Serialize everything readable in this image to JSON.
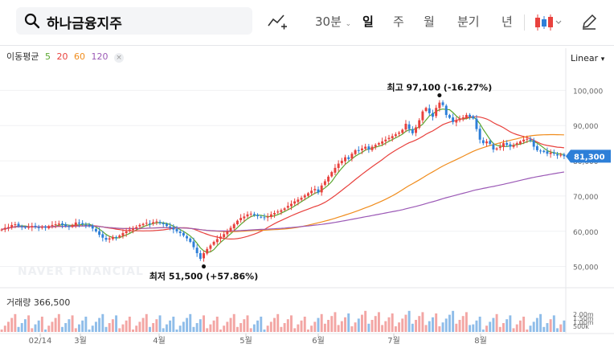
{
  "toolbar": {
    "stock_name": "하나금융지주",
    "interval": "30분",
    "periods": [
      "일",
      "주",
      "월",
      "분기",
      "년"
    ],
    "active_period": "일"
  },
  "legend": {
    "title": "이동평균",
    "items": [
      {
        "label": "5",
        "color": "#5aa62f"
      },
      {
        "label": "20",
        "color": "#e8413d"
      },
      {
        "label": "60",
        "color": "#f08c1c"
      },
      {
        "label": "120",
        "color": "#9b59b6"
      }
    ]
  },
  "scale_mode": "Linear",
  "volume_label": "거래량 366,500",
  "chart_data": {
    "type": "candlestick",
    "ylim": [
      44000,
      106000
    ],
    "yticks": [
      50000,
      60000,
      70000,
      80000,
      90000,
      100000
    ],
    "ytick_labels": [
      "50,000",
      "60,000",
      "70,000",
      "80,000",
      "90,000",
      "100,000"
    ],
    "x_labels": [
      "02/14",
      "3월",
      "4월",
      "5월",
      "6월",
      "7월",
      "8월"
    ],
    "close_series": [
      60500,
      61000,
      61200,
      61800,
      62000,
      61500,
      61200,
      61000,
      61200,
      61500,
      61300,
      61000,
      61200,
      61000,
      61500,
      61800,
      62000,
      62200,
      61800,
      61500,
      61200,
      61800,
      62500,
      62200,
      62000,
      61800,
      61500,
      60800,
      60000,
      59000,
      58200,
      57600,
      58000,
      58400,
      58200,
      58800,
      59500,
      60000,
      60500,
      60800,
      61200,
      61800,
      62100,
      62400,
      62200,
      62600,
      62800,
      62300,
      62000,
      61500,
      61000,
      60500,
      60000,
      59500,
      58800,
      58000,
      57000,
      55500,
      53800,
      52200,
      53800,
      55000,
      56000,
      57000,
      57800,
      58500,
      59200,
      60000,
      61000,
      62000,
      63000,
      63800,
      64200,
      64800,
      65000,
      64600,
      64300,
      64000,
      63800,
      64200,
      64800,
      65200,
      65600,
      66000,
      66500,
      67200,
      67800,
      68500,
      69000,
      69500,
      70200,
      70800,
      71500,
      72000,
      71000,
      73000,
      74200,
      75500,
      76800,
      78000,
      79200,
      80000,
      81000,
      80500,
      82000,
      83000,
      82800,
      83500,
      84000,
      83200,
      84000,
      84500,
      85000,
      85500,
      86000,
      86500,
      87000,
      87500,
      88000,
      88800,
      90500,
      89000,
      87800,
      89500,
      91500,
      94000,
      95000,
      93500,
      92500,
      95000,
      96500,
      95800,
      93000,
      92200,
      91000,
      91500,
      92000,
      92300,
      93000,
      92500,
      92000,
      89000,
      86000,
      85000,
      85500,
      84800,
      83200,
      83500,
      84000,
      85000,
      84500,
      84000,
      84500,
      85000,
      85500,
      86000,
      86200,
      85800,
      84000,
      83000,
      82800,
      82500,
      82000,
      82300,
      82000,
      81500,
      81700,
      81300
    ],
    "volume_ticks": [
      "2.00m",
      "1.50m",
      "1.00m",
      "500k"
    ],
    "annotations": [
      {
        "label": "최고 97,100 (-16.27%)",
        "value": 97100
      },
      {
        "label": "최저 51,500 (+57.86%)",
        "value": 51500
      }
    ],
    "last_price": "81,300",
    "watermark": "NAVER FINANCIAL"
  }
}
